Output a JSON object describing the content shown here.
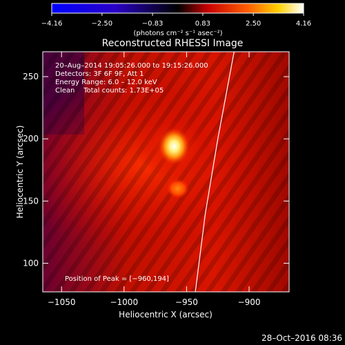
{
  "chart_data": {
    "type": "heatmap",
    "title": "Reconstructed RHESSI Image",
    "xlabel": "Heliocentric X (arcsec)",
    "ylabel": "Heliocentric Y (arcsec)",
    "xlim": [
      -1065,
      -868
    ],
    "ylim": [
      77,
      270
    ],
    "xticks": [
      -1050,
      -1000,
      -950,
      -900
    ],
    "yticks": [
      100,
      150,
      200,
      250
    ],
    "xtick_labels": [
      "−1050",
      "−1000",
      "−950",
      "−900"
    ],
    "ytick_labels": [
      "100",
      "150",
      "200",
      "250"
    ],
    "colorbar": {
      "range": [
        -4.16,
        4.16
      ],
      "ticks": [
        -4.16,
        -2.5,
        -0.83,
        0.83,
        2.5,
        4.16
      ],
      "tick_labels": [
        "−4.16",
        "−2.50",
        "−0.83",
        "0.83",
        "2.50",
        "4.16"
      ],
      "units": "(photons cm⁻² s⁻¹ asec⁻²)",
      "colormap": [
        "#0000ff",
        "#2a00c8",
        "#000000",
        "#c80000",
        "#ff6000",
        "#ffd000",
        "#ffffff"
      ]
    },
    "annotations": {
      "line1": "20–Aug–2014 19:05:26.000 to 19:15:26.000",
      "line2": "Detectors: 3F 6F 9F, Att 1",
      "line3": "Energy Range: 6.0 – 12.0 keV",
      "line4": "Clean    Total counts: 1.73E+05",
      "peak": "Position of Peak = [−960,194]"
    },
    "sources": [
      {
        "x": -960,
        "y": 194,
        "intensity": 4.16
      },
      {
        "x": -957,
        "y": 160,
        "intensity": 2.1
      }
    ],
    "limb": [
      [
        -943,
        77
      ],
      [
        -935,
        140
      ],
      [
        -925,
        200
      ],
      [
        -912,
        270
      ]
    ],
    "timestamp": "28–Oct–2016 08:36"
  }
}
